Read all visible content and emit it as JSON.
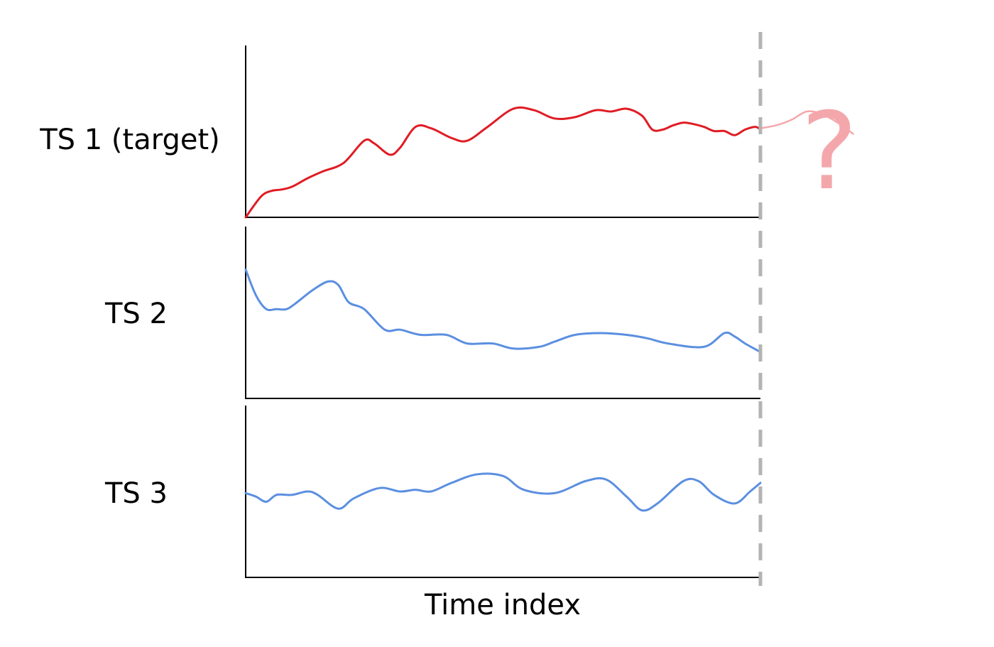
{
  "chart_data": {
    "type": "line",
    "xlabel": "Time index",
    "unknown_marker": "?",
    "colors": {
      "target": "#e01c24",
      "target_forecast": "#f4a7ab",
      "covariate": "#5b8fe0",
      "divider": "#b3b3b3",
      "question": "#f4a7ab"
    },
    "forecast_boundary_x": 100,
    "panels": [
      {
        "label": "TS 1 (target)",
        "ylim": [
          0,
          100
        ],
        "series": [
          {
            "role": "observed",
            "values": [
              [
                0,
                0
              ],
              [
                3,
                15
              ],
              [
                5,
                19
              ],
              [
                7,
                20
              ],
              [
                9,
                22
              ],
              [
                12,
                28
              ],
              [
                15,
                33
              ],
              [
                19,
                39
              ],
              [
                23,
                55
              ],
              [
                25,
                53
              ],
              [
                28,
                45
              ],
              [
                30,
                50
              ],
              [
                33,
                65
              ],
              [
                36,
                64
              ],
              [
                40,
                57
              ],
              [
                43,
                55
              ],
              [
                47,
                65
              ],
              [
                52,
                78
              ],
              [
                56,
                77
              ],
              [
                60,
                71
              ],
              [
                64,
                72
              ],
              [
                68,
                77
              ],
              [
                71,
                76
              ],
              [
                74,
                78
              ],
              [
                77,
                73
              ],
              [
                79,
                63
              ],
              [
                81,
                63
              ],
              [
                83,
                66
              ],
              [
                85,
                68
              ],
              [
                87,
                67
              ],
              [
                89,
                65
              ],
              [
                91,
                62
              ],
              [
                93,
                62
              ],
              [
                95,
                59
              ],
              [
                97,
                63
              ],
              [
                99,
                65
              ],
              [
                100,
                63
              ]
            ]
          },
          {
            "role": "forecast",
            "values": [
              [
                100,
                64
              ],
              [
                103,
                66
              ],
              [
                106,
                70
              ],
              [
                109,
                76
              ],
              [
                112,
                74
              ],
              [
                115,
                68
              ],
              [
                118,
                60
              ]
            ]
          }
        ]
      },
      {
        "label": "TS 2",
        "ylim": [
          0,
          100
        ],
        "series": [
          {
            "role": "covariate",
            "values": [
              [
                0,
                75
              ],
              [
                2,
                60
              ],
              [
                4,
                52
              ],
              [
                6,
                52
              ],
              [
                8,
                52
              ],
              [
                10,
                56
              ],
              [
                13,
                63
              ],
              [
                16,
                68
              ],
              [
                18,
                66
              ],
              [
                20,
                56
              ],
              [
                23,
                52
              ],
              [
                27,
                40
              ],
              [
                30,
                40
              ],
              [
                34,
                37
              ],
              [
                39,
                37
              ],
              [
                43,
                32
              ],
              [
                48,
                32
              ],
              [
                52,
                29
              ],
              [
                57,
                30
              ],
              [
                60,
                33
              ],
              [
                64,
                37
              ],
              [
                69,
                38
              ],
              [
                74,
                37
              ],
              [
                78,
                35
              ],
              [
                82,
                32
              ],
              [
                89,
                30
              ],
              [
                93,
                38
              ],
              [
                95,
                36
              ],
              [
                97,
                32
              ],
              [
                100,
                27
              ]
            ]
          }
        ]
      },
      {
        "label": "TS 3",
        "ylim": [
          0,
          100
        ],
        "series": [
          {
            "role": "covariate",
            "values": [
              [
                0,
                49
              ],
              [
                2,
                47
              ],
              [
                4,
                44
              ],
              [
                6,
                48
              ],
              [
                9,
                48
              ],
              [
                12,
                50
              ],
              [
                14,
                48
              ],
              [
                18,
                40
              ],
              [
                21,
                46
              ],
              [
                26,
                52
              ],
              [
                30,
                50
              ],
              [
                33,
                51
              ],
              [
                36,
                50
              ],
              [
                40,
                55
              ],
              [
                45,
                60
              ],
              [
                50,
                59
              ],
              [
                54,
                51
              ],
              [
                60,
                49
              ],
              [
                66,
                56
              ],
              [
                70,
                57
              ],
              [
                74,
                47
              ],
              [
                77,
                39
              ],
              [
                80,
                43
              ],
              [
                85,
                56
              ],
              [
                88,
                56
              ],
              [
                91,
                48
              ],
              [
                95,
                43
              ],
              [
                98,
                50
              ],
              [
                100,
                55
              ]
            ]
          }
        ]
      }
    ]
  }
}
